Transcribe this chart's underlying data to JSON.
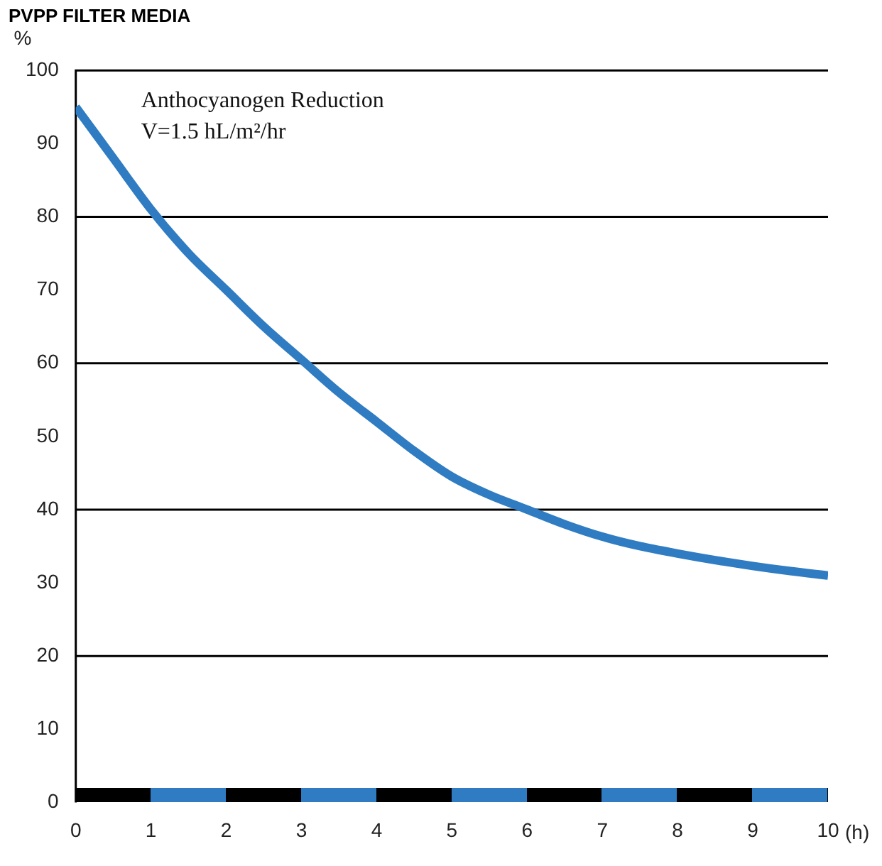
{
  "chart_data": {
    "type": "line",
    "title": "PVPP FILTER MEDIA",
    "xlabel": "(h)",
    "ylabel": "%",
    "annotations": [
      "Anthocyanogen Reduction",
      "V=1.5 hL/m²/hr"
    ],
    "x": [
      0,
      0.5,
      1,
      1.5,
      2,
      2.5,
      3,
      3.5,
      4,
      4.5,
      5,
      5.5,
      6,
      6.5,
      7,
      7.5,
      8,
      8.5,
      9,
      9.5,
      10
    ],
    "series": [
      {
        "color": "#2f7cc2",
        "values": [
          95,
          88,
          81,
          75,
          70,
          65,
          60.5,
          56,
          52,
          48,
          44.5,
          42,
          40,
          38,
          36.3,
          35,
          34,
          33.1,
          32.3,
          31.6,
          31
        ]
      }
    ],
    "xlim": [
      0,
      10
    ],
    "xticks": [
      0,
      1,
      2,
      3,
      4,
      5,
      6,
      7,
      8,
      9,
      10
    ],
    "ylim": [
      0,
      100
    ],
    "yticks": [
      0,
      10,
      20,
      30,
      40,
      50,
      60,
      70,
      80,
      90,
      100
    ],
    "grid": false,
    "legend": false,
    "marker": "none",
    "line_style": "solid",
    "ref_lines": [
      {
        "axis": "y",
        "value": 20,
        "color": "#000000"
      },
      {
        "axis": "y",
        "value": 40,
        "color": "#000000"
      },
      {
        "axis": "y",
        "value": 60,
        "color": "#000000"
      },
      {
        "axis": "y",
        "value": 80,
        "color": "#000000"
      }
    ]
  }
}
